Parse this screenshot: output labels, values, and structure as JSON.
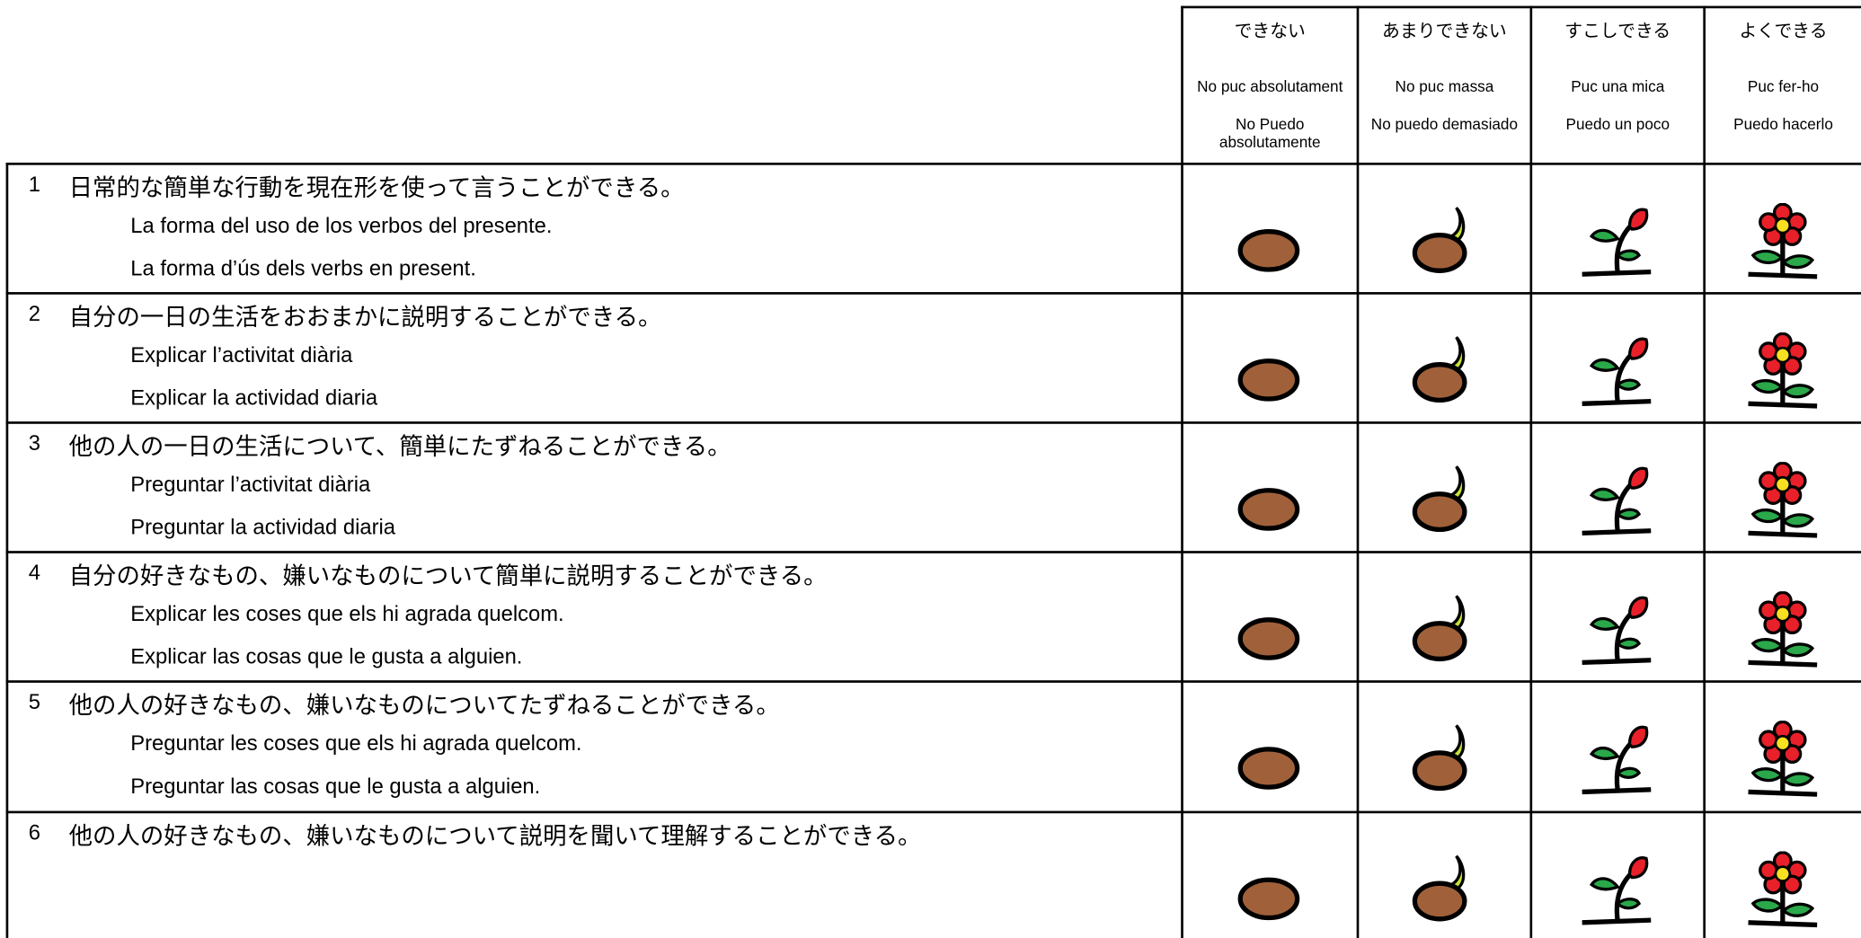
{
  "header": {
    "columns": [
      {
        "ja": "できない",
        "ca": "No puc absolutament",
        "es": "No Puedo absolutamente"
      },
      {
        "ja": "あまりできない",
        "ca": "No puc massa",
        "es": "No puedo demasiado"
      },
      {
        "ja": "すこしできる",
        "ca": "Puc una mica",
        "es": "Puedo un poco"
      },
      {
        "ja": "よくできる",
        "ca": "Puc fer-ho",
        "es": "Puedo hacerlo"
      }
    ]
  },
  "rows": [
    {
      "number": 1,
      "ja": "日常的な簡単な行動を現在形を使って言うことができる。",
      "lines": [
        "La forma del uso de los verbos del presente.",
        "La forma d’ús dels verbs en present."
      ]
    },
    {
      "number": 2,
      "ja": "自分の一日の生活をおおまかに説明することができる。",
      "lines": [
        "Explicar l’activitat diària",
        "Explicar la actividad diaria"
      ]
    },
    {
      "number": 3,
      "ja": "他の人の一日の生活について、簡単にたずねることができる。",
      "lines": [
        "Preguntar l’activitat diària",
        "Preguntar la actividad diaria"
      ]
    },
    {
      "number": 4,
      "ja": "自分の好きなもの、嫌いなものについて簡単に説明することができる。",
      "lines": [
        "Explicar les coses que els hi agrada quelcom.",
        "Explicar las cosas que le gusta a alguien."
      ]
    },
    {
      "number": 5,
      "ja": "他の人の好きなもの、嫌いなものについてたずねることができる。",
      "lines": [
        "Preguntar les coses que els hi agrada quelcom.",
        "Preguntar las cosas que le gusta a alguien."
      ]
    },
    {
      "number": 6,
      "ja": "他の人の好きなもの、嫌いなものについて説明を聞いて理解することができる。",
      "lines": []
    }
  ]
}
